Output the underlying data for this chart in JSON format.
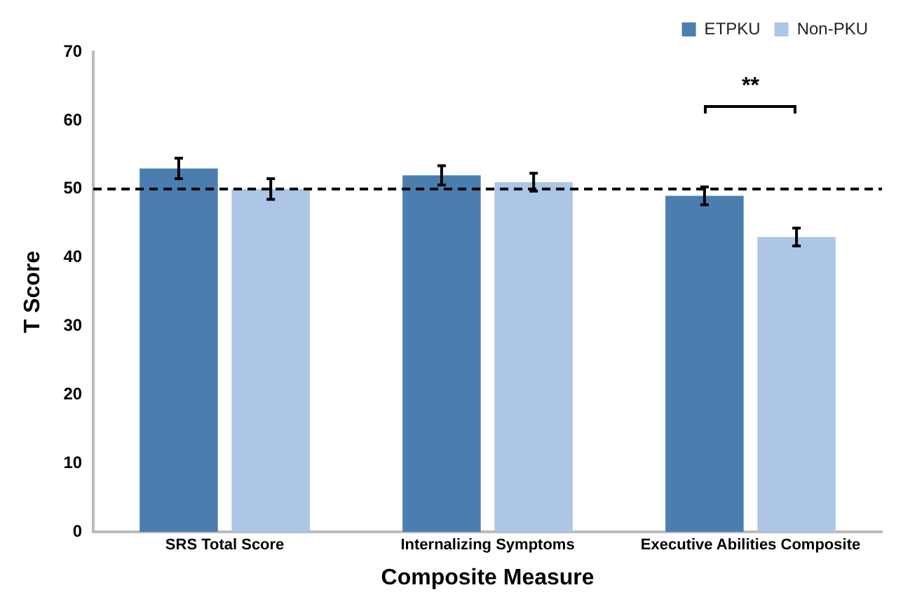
{
  "chart_data": {
    "type": "bar",
    "xlabel": "Composite Measure",
    "ylabel": "T Score",
    "categories": [
      "SRS Total Score",
      "Internalizing Symptoms",
      "Executive Abilities Composite"
    ],
    "series": [
      {
        "name": "ETPKU",
        "color": "#4a7eb0",
        "values": [
          53,
          52,
          49
        ],
        "errors": [
          1.5,
          1.4,
          1.3
        ]
      },
      {
        "name": "Non-PKU",
        "color": "#adc6e6",
        "values": [
          50,
          51,
          43
        ],
        "errors": [
          1.5,
          1.3,
          1.3
        ]
      }
    ],
    "ylim": [
      0,
      70
    ],
    "yticks": [
      0,
      10,
      20,
      30,
      40,
      50,
      60,
      70
    ],
    "grid": false,
    "legend": "top right",
    "ref_lines": [
      {
        "axis": "y",
        "value": 50,
        "color": "#000000",
        "line_style": "dashed"
      }
    ],
    "annotations": [
      "**"
    ]
  }
}
